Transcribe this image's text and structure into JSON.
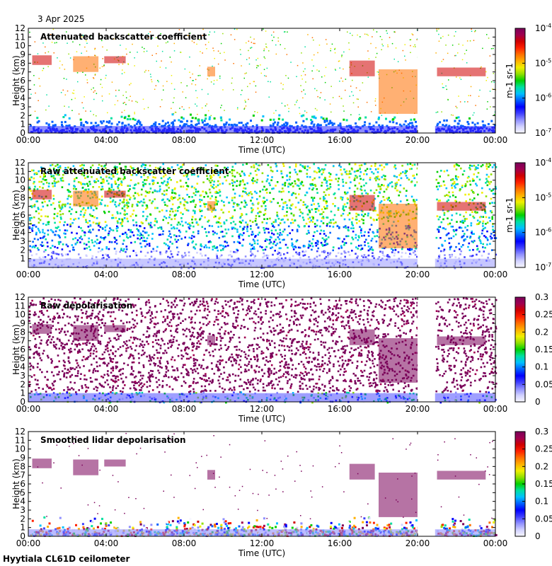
{
  "header": {
    "date": "3 Apr 2025"
  },
  "footer": {
    "site": "Hyytiala CL61D ceilometer"
  },
  "colormap_colors": [
    "#f7f7ff",
    "#d0d0ff",
    "#8f8fff",
    "#3f3fff",
    "#0000ff",
    "#0060ff",
    "#00c0ff",
    "#00e0a0",
    "#00d000",
    "#90e000",
    "#f0f000",
    "#ffb000",
    "#ff7000",
    "#ff2000",
    "#d00000",
    "#a00050",
    "#7a005a"
  ],
  "chart_data": [
    {
      "type": "heatmap",
      "title": "Attenuated backscatter coefficient",
      "xlabel": "Time (UTC)",
      "ylabel": "Height (km)",
      "xticks": [
        "00:00",
        "04:00",
        "08:00",
        "12:00",
        "16:00",
        "20:00",
        "00:00"
      ],
      "yticks": [
        "0",
        "1",
        "2",
        "3",
        "4",
        "5",
        "6",
        "7",
        "8",
        "9",
        "10",
        "11",
        "12"
      ],
      "ylim": [
        0,
        12
      ],
      "xlim_hours": [
        0,
        24
      ],
      "data_gap_hours": [
        20.0,
        20.9
      ],
      "colorbar": {
        "scale": "log",
        "ticks": [
          "10-7",
          "10-6",
          "10-5",
          "10-4"
        ],
        "unit": "m-1 sr-1"
      },
      "cloud_layers": [
        {
          "t0": 0.2,
          "t1": 1.2,
          "h0": 7.8,
          "h1": 8.9
        },
        {
          "t0": 2.3,
          "t1": 3.6,
          "h0": 7.0,
          "h1": 8.8
        },
        {
          "t0": 3.9,
          "t1": 5.0,
          "h0": 8.0,
          "h1": 8.8
        },
        {
          "t0": 9.2,
          "t1": 9.6,
          "h0": 6.5,
          "h1": 7.6
        },
        {
          "t0": 16.5,
          "t1": 17.8,
          "h0": 6.5,
          "h1": 8.3
        },
        {
          "t0": 18.0,
          "t1": 20.0,
          "h0": 2.2,
          "h1": 7.3
        },
        {
          "t0": 21.0,
          "t1": 23.5,
          "h0": 6.5,
          "h1": 7.5
        }
      ]
    },
    {
      "type": "heatmap",
      "title": "Raw attenuated backscatter coefficient",
      "xlabel": "Time (UTC)",
      "ylabel": "Height (km)",
      "xticks": [
        "00:00",
        "04:00",
        "08:00",
        "12:00",
        "16:00",
        "20:00",
        "00:00"
      ],
      "yticks": [
        "1",
        "2",
        "3",
        "4",
        "5",
        "6",
        "7",
        "8",
        "9",
        "10",
        "11",
        "12"
      ],
      "ylim": [
        0,
        12
      ],
      "xlim_hours": [
        0,
        24
      ],
      "data_gap_hours": [
        20.0,
        20.9
      ],
      "colorbar": {
        "scale": "log",
        "ticks": [
          "10-7",
          "10-6",
          "10-5",
          "10-4"
        ],
        "unit": "m-1 sr-1"
      }
    },
    {
      "type": "heatmap",
      "title": "Raw depolarisation",
      "xlabel": "Time (UTC)",
      "ylabel": "Height (km)",
      "xticks": [
        "00:00",
        "04:00",
        "08:00",
        "12:00",
        "16:00",
        "20:00",
        "00:00"
      ],
      "yticks": [
        "0",
        "1",
        "2",
        "3",
        "4",
        "5",
        "6",
        "7",
        "8",
        "9",
        "10",
        "11",
        "12"
      ],
      "ylim": [
        0,
        12
      ],
      "xlim_hours": [
        0,
        24
      ],
      "data_gap_hours": [
        20.0,
        20.9
      ],
      "colorbar": {
        "scale": "linear",
        "ticks": [
          "0",
          "0.05",
          "0.1",
          "0.15",
          "0.2",
          "0.25",
          "0.3"
        ],
        "range": [
          0,
          0.3
        ]
      }
    },
    {
      "type": "heatmap",
      "title": "Smoothed lidar depolarisation",
      "xlabel": "Time (UTC)",
      "ylabel": "Height (km)",
      "xticks": [
        "00:00",
        "04:00",
        "08:00",
        "12:00",
        "16:00",
        "20:00",
        "00:00"
      ],
      "yticks": [
        "0",
        "1",
        "2",
        "3",
        "4",
        "5",
        "6",
        "7",
        "8",
        "9",
        "10",
        "11",
        "12"
      ],
      "ylim": [
        0,
        12
      ],
      "xlim_hours": [
        0,
        24
      ],
      "data_gap_hours": [
        20.0,
        20.9
      ],
      "colorbar": {
        "scale": "linear",
        "ticks": [
          "0",
          "0.05",
          "0.1",
          "0.15",
          "0.2",
          "0.25",
          "0.3"
        ],
        "range": [
          0,
          0.3
        ]
      }
    }
  ]
}
